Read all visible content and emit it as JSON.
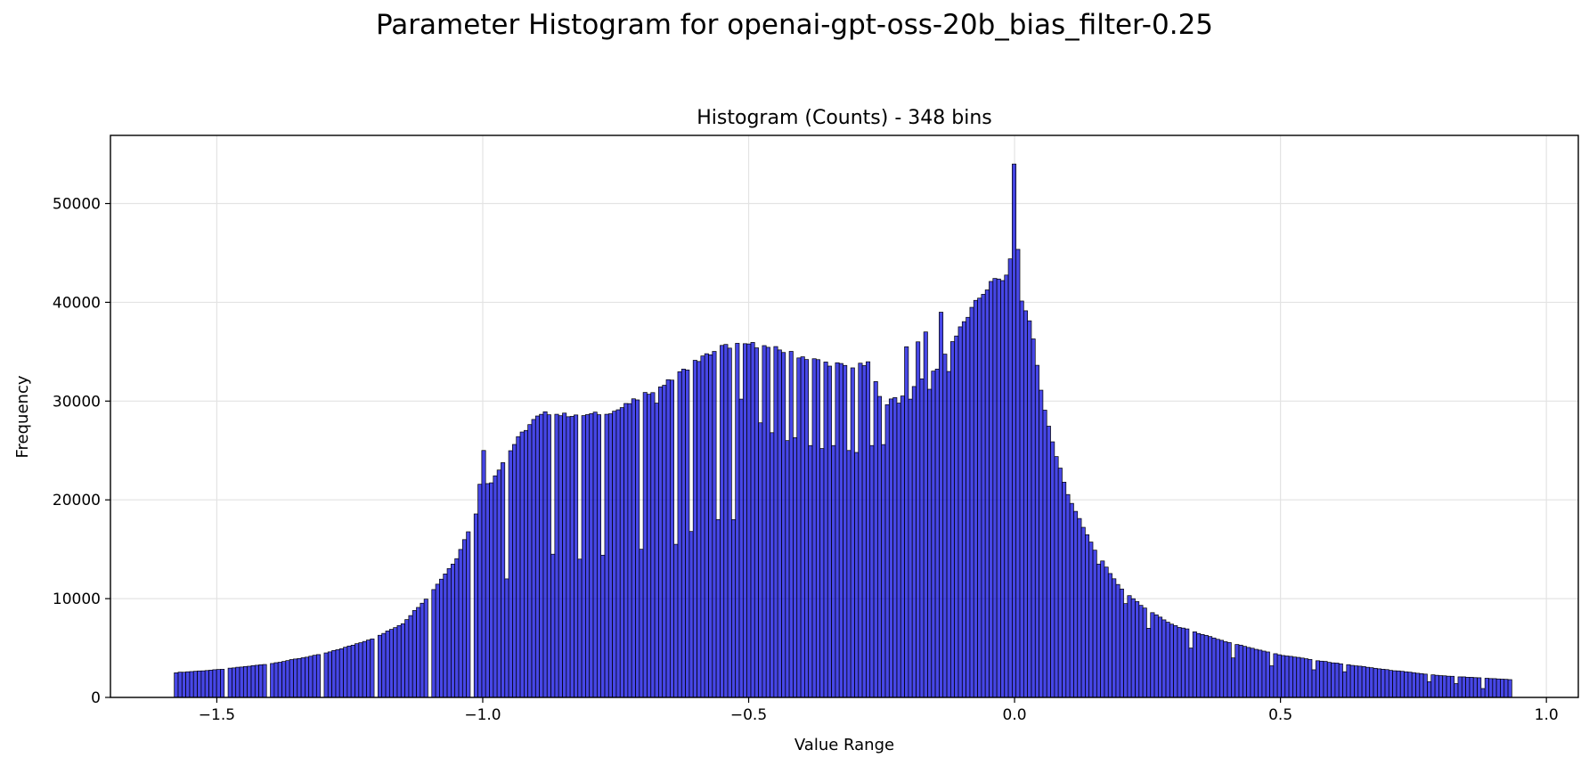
{
  "figure": {
    "suptitle": "Parameter Histogram for openai-gpt-oss-20b_bias_filter-0.25"
  },
  "chart_data": {
    "type": "bar",
    "title": "Histogram (Counts) - 348 bins",
    "xlabel": "Value Range",
    "ylabel": "Frequency",
    "bins": 348,
    "bin_range": [
      -1.58,
      0.935
    ],
    "xlim": [
      -1.7,
      1.06
    ],
    "ylim": [
      0,
      56900
    ],
    "xticks": [
      -1.5,
      -1.0,
      -0.5,
      0.0,
      0.5,
      1.0
    ],
    "xtick_labels": [
      "−1.5",
      "−1.0",
      "−0.5",
      "0.0",
      "0.5",
      "1.0"
    ],
    "yticks": [
      0,
      10000,
      20000,
      30000,
      40000,
      50000
    ],
    "ytick_labels": [
      "0",
      "10000",
      "20000",
      "30000",
      "40000",
      "50000"
    ],
    "grid": true,
    "bar_color": "#0000dd",
    "bar_edge_color": "#000000",
    "profile_points": [
      [
        -1.58,
        2500
      ],
      [
        -1.5,
        2800
      ],
      [
        -1.4,
        3400
      ],
      [
        -1.3,
        4400
      ],
      [
        -1.25,
        5200
      ],
      [
        -1.2,
        6100
      ],
      [
        -1.15,
        7500
      ],
      [
        -1.1,
        10400
      ],
      [
        -1.05,
        14000
      ],
      [
        -1.01,
        19000
      ],
      [
        -1.0,
        25000
      ],
      [
        -0.99,
        21300
      ],
      [
        -0.96,
        24000
      ],
      [
        -0.93,
        26500
      ],
      [
        -0.9,
        28300
      ],
      [
        -0.88,
        28800
      ],
      [
        -0.85,
        28600
      ],
      [
        -0.8,
        28600
      ],
      [
        -0.75,
        29000
      ],
      [
        -0.7,
        30500
      ],
      [
        -0.65,
        32000
      ],
      [
        -0.6,
        34000
      ],
      [
        -0.55,
        35500
      ],
      [
        -0.5,
        35800
      ],
      [
        -0.45,
        35300
      ],
      [
        -0.4,
        34500
      ],
      [
        -0.35,
        33800
      ],
      [
        -0.3,
        33500
      ],
      [
        -0.27,
        33800
      ],
      [
        -0.25,
        29500
      ],
      [
        -0.2,
        31000
      ],
      [
        -0.15,
        33000
      ],
      [
        -0.1,
        37500
      ],
      [
        -0.07,
        40200
      ],
      [
        -0.04,
        42200
      ],
      [
        -0.01,
        42500
      ],
      [
        0.0,
        54000
      ],
      [
        0.01,
        40500
      ],
      [
        0.03,
        38000
      ],
      [
        0.05,
        31000
      ],
      [
        0.07,
        26000
      ],
      [
        0.1,
        20500
      ],
      [
        0.15,
        15000
      ],
      [
        0.2,
        11000
      ],
      [
        0.25,
        8800
      ],
      [
        0.3,
        7300
      ],
      [
        0.4,
        5600
      ],
      [
        0.5,
        4300
      ],
      [
        0.6,
        3500
      ],
      [
        0.7,
        2800
      ],
      [
        0.8,
        2200
      ],
      [
        0.9,
        1900
      ],
      [
        0.935,
        1800
      ]
    ],
    "spikes": [
      [
        -1.0,
        25000
      ],
      [
        0.0,
        54000
      ],
      [
        -0.245,
        36000
      ],
      [
        -0.17,
        37000
      ],
      [
        -0.14,
        39000
      ],
      [
        -0.205,
        35500
      ],
      [
        -0.185,
        36000
      ]
    ],
    "dips": [
      [
        -1.48,
        0
      ],
      [
        -1.4,
        0
      ],
      [
        -1.3,
        0
      ],
      [
        -1.2,
        0
      ],
      [
        -1.1,
        0
      ],
      [
        -1.02,
        0
      ],
      [
        -0.955,
        12000
      ],
      [
        -0.87,
        14500
      ],
      [
        -0.82,
        14000
      ],
      [
        -0.775,
        14400
      ],
      [
        -0.705,
        15000
      ],
      [
        -0.67,
        29800
      ],
      [
        -0.64,
        15500
      ],
      [
        -0.61,
        16800
      ],
      [
        -0.56,
        18000
      ],
      [
        -0.53,
        18000
      ],
      [
        -0.515,
        30200
      ],
      [
        -0.48,
        27800
      ],
      [
        -0.455,
        26800
      ],
      [
        -0.43,
        26000
      ],
      [
        -0.41,
        26300
      ],
      [
        -0.385,
        25500
      ],
      [
        -0.36,
        25200
      ],
      [
        -0.34,
        25500
      ],
      [
        -0.315,
        25000
      ],
      [
        -0.295,
        24800
      ],
      [
        -0.27,
        25500
      ],
      [
        -0.25,
        25600
      ],
      [
        -0.22,
        29800
      ],
      [
        -0.195,
        30200
      ],
      [
        -0.16,
        31200
      ],
      [
        -0.125,
        33000
      ],
      [
        0.155,
        13500
      ],
      [
        0.21,
        9500
      ],
      [
        0.25,
        7000
      ],
      [
        0.33,
        5000
      ],
      [
        0.41,
        4000
      ],
      [
        0.48,
        3200
      ],
      [
        0.56,
        2800
      ],
      [
        0.62,
        2600
      ],
      [
        0.78,
        1600
      ],
      [
        0.83,
        1400
      ],
      [
        0.88,
        900
      ]
    ]
  }
}
